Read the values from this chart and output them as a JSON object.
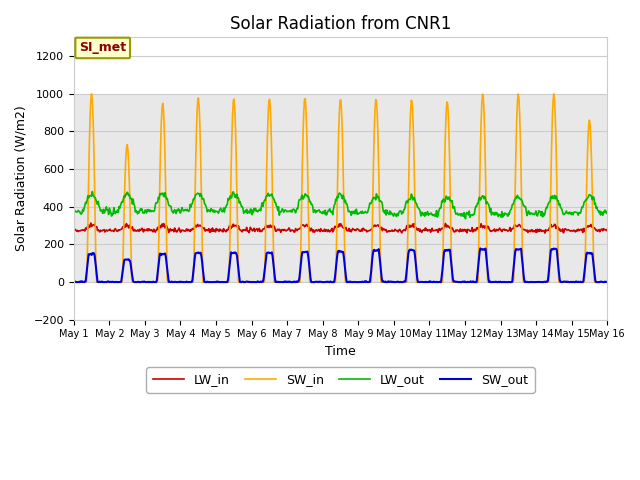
{
  "title": "Solar Radiation from CNR1",
  "xlabel": "Time",
  "ylabel": "Solar Radiation (W/m2)",
  "ylim": [
    -200,
    1300
  ],
  "yticks": [
    -200,
    0,
    200,
    400,
    600,
    800,
    1000,
    1200
  ],
  "legend_label": "SI_met",
  "legend_labels": [
    "LW_in",
    "SW_in",
    "LW_out",
    "SW_out"
  ],
  "line_colors": [
    "#cc0000",
    "#ffaa00",
    "#00bb00",
    "#0000dd"
  ],
  "plot_bg_color": "#ffffff",
  "grid_color": "#cccccc",
  "shaded_bg": "#e8e8e8",
  "n_days": 15,
  "start_day": 1,
  "end_day": 16
}
